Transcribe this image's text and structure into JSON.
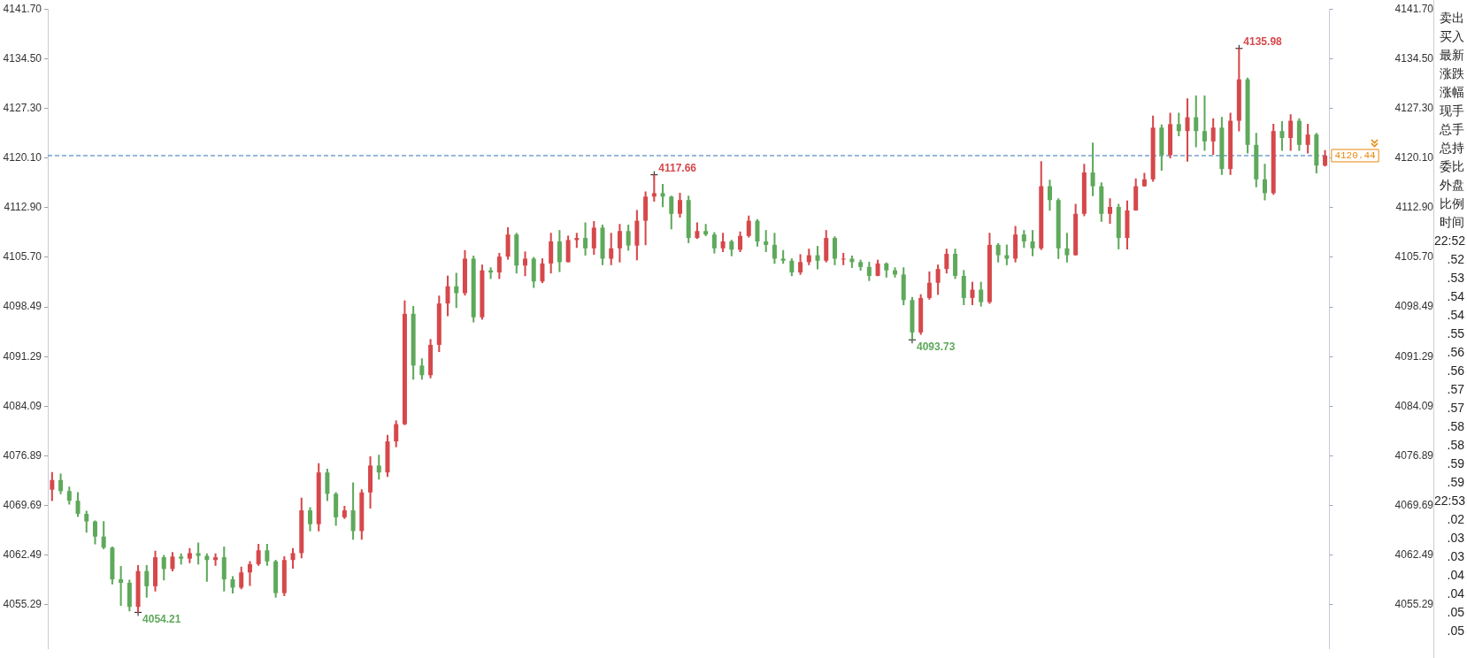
{
  "chart_data": {
    "type": "candlestick",
    "categories": [
      null,
      null,
      null,
      null,
      null,
      null,
      null,
      null,
      null,
      null,
      null,
      null,
      null,
      null,
      null,
      null,
      null,
      null,
      null,
      null,
      null,
      null,
      null,
      null,
      null,
      null,
      null,
      null,
      null,
      null,
      null,
      null,
      null,
      null,
      null,
      null,
      null,
      null,
      null,
      null,
      null,
      null,
      null,
      null,
      null,
      null,
      null,
      null,
      null,
      null,
      null,
      null,
      null,
      null,
      null,
      null,
      null,
      null,
      null,
      null,
      null,
      null,
      null,
      null,
      null,
      null,
      null,
      null,
      null,
      null,
      null,
      null,
      null,
      null,
      null,
      null,
      null,
      null,
      null,
      null,
      null,
      null,
      null,
      null,
      null,
      null,
      null,
      null,
      null,
      null,
      null,
      null,
      null,
      null,
      null,
      null,
      null,
      null,
      null,
      null,
      null,
      null,
      null,
      null,
      null,
      null,
      null,
      null,
      null,
      null,
      null,
      null,
      null,
      null,
      null,
      null,
      null,
      null,
      null,
      null,
      null,
      null,
      null,
      null,
      null,
      null,
      null,
      null,
      null,
      null,
      null,
      null,
      null,
      null,
      null,
      null,
      null,
      null,
      null,
      null,
      null,
      null,
      null,
      null,
      null,
      null,
      null,
      null,
      null
    ],
    "ohlc": [
      [
        4072.0,
        4074.5,
        4070.4,
        4073.4
      ],
      [
        4073.4,
        4074.3,
        4071.4,
        4071.8
      ],
      [
        4071.8,
        4072.4,
        4069.9,
        4070.4
      ],
      [
        4070.4,
        4071.6,
        4068.1,
        4068.5
      ],
      [
        4068.5,
        4068.9,
        4065.8,
        4067.4
      ],
      [
        4067.4,
        4067.5,
        4064.1,
        4065.2
      ],
      [
        4065.2,
        4067.4,
        4063.4,
        4063.6
      ],
      [
        4063.6,
        4063.7,
        4058.3,
        4059.0
      ],
      [
        4059.0,
        4060.9,
        4055.2,
        4058.5
      ],
      [
        4058.5,
        4058.9,
        4054.4,
        4055.0
      ],
      [
        4055.0,
        4061.0,
        4054.21,
        4060.2
      ],
      [
        4060.2,
        4061.0,
        4056.4,
        4058.0
      ],
      [
        4058.0,
        4063.1,
        4057.3,
        4062.2
      ],
      [
        4062.2,
        4062.5,
        4058.9,
        4060.5
      ],
      [
        4060.5,
        4062.9,
        4060.2,
        4062.3
      ],
      [
        4062.3,
        4062.7,
        4061.2,
        4062.0
      ],
      [
        4062.0,
        4063.5,
        4061.4,
        4062.8
      ],
      [
        4062.8,
        4064.3,
        4061.2,
        4062.4
      ],
      [
        4062.4,
        4062.7,
        4058.7,
        4061.8
      ],
      [
        4061.8,
        4062.7,
        4061.0,
        4062.2
      ],
      [
        4062.2,
        4063.7,
        4057.3,
        4059.0
      ],
      [
        4059.0,
        4059.4,
        4057.0,
        4057.8
      ],
      [
        4057.8,
        4060.8,
        4057.6,
        4060.0
      ],
      [
        4060.0,
        4061.6,
        4058.1,
        4061.2
      ],
      [
        4061.2,
        4064.1,
        4061.0,
        4063.2
      ],
      [
        4063.2,
        4064.1,
        4061.0,
        4061.6
      ],
      [
        4061.6,
        4061.8,
        4056.4,
        4057.0
      ],
      [
        4057.0,
        4062.3,
        4056.6,
        4061.8
      ],
      [
        4061.8,
        4063.5,
        4060.6,
        4062.8
      ],
      [
        4062.8,
        4070.8,
        4062.1,
        4069.0
      ],
      [
        4069.0,
        4069.4,
        4066.0,
        4067.0
      ],
      [
        4067.0,
        4075.8,
        4066.0,
        4074.5
      ],
      [
        4074.5,
        4075.0,
        4070.4,
        4071.4
      ],
      [
        4071.4,
        4071.6,
        4066.8,
        4068.0
      ],
      [
        4068.0,
        4069.6,
        4067.8,
        4069.0
      ],
      [
        4069.0,
        4073.0,
        4064.8,
        4066.0
      ],
      [
        4066.0,
        4072.0,
        4064.8,
        4071.6
      ],
      [
        4071.6,
        4076.8,
        4069.3,
        4075.5
      ],
      [
        4075.5,
        4077.0,
        4073.5,
        4074.5
      ],
      [
        4074.5,
        4079.9,
        4073.9,
        4079.0
      ],
      [
        4079.0,
        4082.0,
        4078.2,
        4081.5
      ],
      [
        4081.5,
        4099.4,
        4081.4,
        4097.5
      ],
      [
        4097.5,
        4098.6,
        4088.0,
        4090.0
      ],
      [
        4090.0,
        4091.0,
        4088.0,
        4088.6
      ],
      [
        4088.6,
        4093.8,
        4088.2,
        4093.0
      ],
      [
        4093.0,
        4100.1,
        4092.0,
        4099.0
      ],
      [
        4099.0,
        4103.0,
        4097.2,
        4101.5
      ],
      [
        4101.5,
        4103.4,
        4098.4,
        4100.5
      ],
      [
        4100.5,
        4106.7,
        4100.2,
        4105.5
      ],
      [
        4105.5,
        4105.9,
        4096.3,
        4097.0
      ],
      [
        4097.0,
        4104.6,
        4096.7,
        4103.8
      ],
      [
        4103.8,
        4104.2,
        4102.6,
        4103.5
      ],
      [
        4103.5,
        4106.3,
        4102.6,
        4105.8
      ],
      [
        4105.8,
        4110.0,
        4105.4,
        4109.0
      ],
      [
        4109.0,
        4109.2,
        4103.4,
        4104.5
      ],
      [
        4104.5,
        4106.5,
        4103.0,
        4105.5
      ],
      [
        4105.5,
        4105.7,
        4101.3,
        4102.2
      ],
      [
        4102.2,
        4105.5,
        4102.0,
        4104.8
      ],
      [
        4104.8,
        4109.2,
        4103.4,
        4108.0
      ],
      [
        4108.0,
        4109.6,
        4103.6,
        4105.0
      ],
      [
        4105.0,
        4108.8,
        4105.0,
        4108.2
      ],
      [
        4108.2,
        4109.2,
        4107.1,
        4108.5
      ],
      [
        4108.5,
        4110.7,
        4106.0,
        4107.0
      ],
      [
        4107.0,
        4110.9,
        4106.1,
        4110.0
      ],
      [
        4110.0,
        4110.4,
        4104.6,
        4105.5
      ],
      [
        4105.5,
        4109.2,
        4104.6,
        4107.0
      ],
      [
        4107.0,
        4110.5,
        4105.0,
        4109.5
      ],
      [
        4109.5,
        4110.4,
        4106.7,
        4107.4
      ],
      [
        4107.4,
        4112.5,
        4105.3,
        4111.0
      ],
      [
        4111.0,
        4115.2,
        4107.5,
        4114.5
      ],
      [
        4114.5,
        4117.66,
        4113.8,
        4115.0
      ],
      [
        4115.0,
        4116.3,
        4113.0,
        4114.5
      ],
      [
        4114.5,
        4114.6,
        4109.8,
        4112.0
      ],
      [
        4112.0,
        4115.0,
        4111.5,
        4114.0
      ],
      [
        4114.0,
        4114.6,
        4107.8,
        4108.5
      ],
      [
        4108.5,
        4110.7,
        4108.4,
        4109.5
      ],
      [
        4109.5,
        4110.5,
        4108.8,
        4109.0
      ],
      [
        4109.0,
        4109.3,
        4106.3,
        4107.0
      ],
      [
        4107.0,
        4109.2,
        4106.5,
        4108.0
      ],
      [
        4108.0,
        4108.2,
        4105.9,
        4106.8
      ],
      [
        4106.8,
        4109.4,
        4106.5,
        4108.8
      ],
      [
        4108.8,
        4111.7,
        4108.6,
        4111.0
      ],
      [
        4111.0,
        4111.2,
        4107.3,
        4108.0
      ],
      [
        4108.0,
        4109.6,
        4106.5,
        4107.5
      ],
      [
        4107.5,
        4109.2,
        4104.8,
        4105.5
      ],
      [
        4105.5,
        4106.7,
        4104.8,
        4105.2
      ],
      [
        4105.2,
        4105.5,
        4103.0,
        4103.5
      ],
      [
        4103.5,
        4106.1,
        4103.2,
        4105.0
      ],
      [
        4105.0,
        4106.9,
        4104.6,
        4106.0
      ],
      [
        4106.0,
        4107.3,
        4104.0,
        4105.2
      ],
      [
        4105.2,
        4109.6,
        4105.0,
        4108.5
      ],
      [
        4108.5,
        4108.7,
        4104.6,
        4105.5
      ],
      [
        4105.5,
        4106.3,
        4104.6,
        4105.5
      ],
      [
        4105.5,
        4105.9,
        4104.2,
        4105.0
      ],
      [
        4105.0,
        4105.3,
        4103.8,
        4104.3
      ],
      [
        4104.3,
        4105.0,
        4102.3,
        4103.0
      ],
      [
        4103.0,
        4105.3,
        4103.0,
        4104.8
      ],
      [
        4104.8,
        4104.9,
        4102.8,
        4103.8
      ],
      [
        4103.8,
        4104.2,
        4102.8,
        4103.2
      ],
      [
        4103.2,
        4104.2,
        4098.8,
        4099.5
      ],
      [
        4099.5,
        4099.9,
        4093.73,
        4094.8
      ],
      [
        4094.8,
        4100.3,
        4094.5,
        4099.8
      ],
      [
        4099.8,
        4103.6,
        4099.6,
        4102.0
      ],
      [
        4102.0,
        4104.6,
        4100.3,
        4104.0
      ],
      [
        4104.0,
        4106.9,
        4103.4,
        4106.2
      ],
      [
        4106.2,
        4106.9,
        4102.6,
        4103.0
      ],
      [
        4103.0,
        4103.8,
        4098.8,
        4099.8
      ],
      [
        4099.8,
        4102.1,
        4098.8,
        4101.0
      ],
      [
        4101.0,
        4102.1,
        4098.6,
        4099.2
      ],
      [
        4099.2,
        4109.2,
        4099.0,
        4107.5
      ],
      [
        4107.5,
        4107.7,
        4105.0,
        4106.0
      ],
      [
        4106.0,
        4107.5,
        4104.6,
        4105.5
      ],
      [
        4105.5,
        4110.2,
        4105.0,
        4109.0
      ],
      [
        4109.0,
        4109.6,
        4107.1,
        4108.0
      ],
      [
        4108.0,
        4109.6,
        4105.9,
        4107.0
      ],
      [
        4107.0,
        4119.6,
        4106.8,
        4116.0
      ],
      [
        4116.0,
        4116.9,
        4112.5,
        4114.0
      ],
      [
        4114.0,
        4114.2,
        4105.5,
        4107.0
      ],
      [
        4107.0,
        4109.2,
        4105.0,
        4106.0
      ],
      [
        4106.0,
        4113.4,
        4106.0,
        4112.0
      ],
      [
        4112.0,
        4119.2,
        4111.7,
        4118.0
      ],
      [
        4118.0,
        4122.3,
        4114.6,
        4116.0
      ],
      [
        4116.0,
        4116.5,
        4110.9,
        4112.0
      ],
      [
        4112.0,
        4114.2,
        4110.6,
        4113.0
      ],
      [
        4113.0,
        4113.4,
        4106.9,
        4108.5
      ],
      [
        4108.5,
        4113.9,
        4106.9,
        4112.5
      ],
      [
        4112.5,
        4117.1,
        4112.5,
        4116.0
      ],
      [
        4116.0,
        4117.9,
        4116.0,
        4117.0
      ],
      [
        4117.0,
        4126.2,
        4116.7,
        4124.5
      ],
      [
        4124.5,
        4124.9,
        4118.3,
        4120.5
      ],
      [
        4120.5,
        4126.6,
        4120.1,
        4125.0
      ],
      [
        4125.0,
        4126.6,
        4123.3,
        4124.0
      ],
      [
        4124.0,
        4128.7,
        4119.6,
        4126.0
      ],
      [
        4126.0,
        4129.1,
        4121.7,
        4124.0
      ],
      [
        4124.0,
        4129.1,
        4121.2,
        4122.5
      ],
      [
        4122.5,
        4125.8,
        4120.6,
        4124.5
      ],
      [
        4124.5,
        4126.0,
        4117.7,
        4118.5
      ],
      [
        4118.5,
        4126.6,
        4117.7,
        4125.5
      ],
      [
        4125.5,
        4135.98,
        4124.0,
        4131.5
      ],
      [
        4131.5,
        4131.7,
        4120.8,
        4122.0
      ],
      [
        4122.0,
        4123.7,
        4115.9,
        4117.0
      ],
      [
        4117.0,
        4119.2,
        4114.0,
        4115.0
      ],
      [
        4115.0,
        4125.0,
        4114.8,
        4124.0
      ],
      [
        4124.0,
        4125.4,
        4121.2,
        4123.0
      ],
      [
        4123.0,
        4126.4,
        4121.2,
        4125.5
      ],
      [
        4125.5,
        4125.8,
        4121.2,
        4122.0
      ],
      [
        4122.0,
        4125.0,
        4120.8,
        4123.5
      ],
      [
        4123.5,
        4123.7,
        4117.9,
        4119.0
      ],
      [
        4119.0,
        4121.2,
        4118.9,
        4120.44
      ]
    ],
    "value_labels": [
      null,
      null,
      null,
      null,
      null,
      null,
      null,
      null,
      null,
      null,
      "4054.21",
      null,
      null,
      null,
      null,
      null,
      null,
      null,
      null,
      null,
      null,
      null,
      null,
      null,
      null,
      null,
      null,
      null,
      null,
      null,
      null,
      null,
      null,
      null,
      null,
      null,
      null,
      null,
      null,
      null,
      null,
      null,
      null,
      null,
      null,
      null,
      null,
      null,
      null,
      null,
      null,
      null,
      null,
      null,
      null,
      null,
      null,
      null,
      null,
      null,
      null,
      null,
      null,
      null,
      null,
      null,
      null,
      null,
      null,
      null,
      "4117.66",
      null,
      null,
      null,
      null,
      null,
      null,
      null,
      null,
      null,
      null,
      null,
      null,
      null,
      null,
      null,
      null,
      null,
      null,
      null,
      null,
      null,
      null,
      null,
      null,
      null,
      null,
      null,
      null,
      null,
      "4093.73",
      null,
      null,
      null,
      null,
      null,
      null,
      null,
      null,
      null,
      null,
      null,
      null,
      null,
      null,
      null,
      null,
      null,
      null,
      null,
      null,
      null,
      null,
      null,
      null,
      null,
      null,
      null,
      null,
      null,
      null,
      null,
      null,
      null,
      null,
      null,
      null,
      null,
      "4135.98",
      null,
      null,
      null,
      null,
      null,
      null,
      null,
      null,
      null,
      null
    ],
    "colors": [
      "#d6484b",
      "#5ea95b",
      "#5ea95b",
      "#5ea95b",
      "#5ea95b",
      "#5ea95b",
      "#5ea95b",
      "#5ea95b",
      "#5ea95b",
      "#5ea95b",
      "#d6484b",
      "#5ea95b",
      "#d6484b",
      "#5ea95b",
      "#d6484b",
      "#5ea95b",
      "#d6484b",
      "#5ea95b",
      "#5ea95b",
      "#d6484b",
      "#5ea95b",
      "#5ea95b",
      "#d6484b",
      "#d6484b",
      "#d6484b",
      "#5ea95b",
      "#5ea95b",
      "#d6484b",
      "#d6484b",
      "#d6484b",
      "#5ea95b",
      "#d6484b",
      "#5ea95b",
      "#5ea95b",
      "#d6484b",
      "#5ea95b",
      "#d6484b",
      "#d6484b",
      "#5ea95b",
      "#d6484b",
      "#d6484b",
      "#d6484b",
      "#5ea95b",
      "#5ea95b",
      "#d6484b",
      "#d6484b",
      "#d6484b",
      "#5ea95b",
      "#d6484b",
      "#5ea95b",
      "#d6484b",
      "#5ea95b",
      "#d6484b",
      "#d6484b",
      "#5ea95b",
      "#d6484b",
      "#5ea95b",
      "#d6484b",
      "#d6484b",
      "#5ea95b",
      "#d6484b",
      "#d6484b",
      "#5ea95b",
      "#d6484b",
      "#5ea95b",
      "#d6484b",
      "#d6484b",
      "#5ea95b",
      "#d6484b",
      "#d6484b",
      "#d6484b",
      "#5ea95b",
      "#5ea95b",
      "#d6484b",
      "#5ea95b",
      "#d6484b",
      "#5ea95b",
      "#5ea95b",
      "#d6484b",
      "#5ea95b",
      "#d6484b",
      "#d6484b",
      "#5ea95b",
      "#5ea95b",
      "#5ea95b",
      "#5ea95b",
      "#5ea95b",
      "#d6484b",
      "#d6484b",
      "#5ea95b",
      "#d6484b",
      "#5ea95b",
      "#d6484b",
      "#5ea95b",
      "#5ea95b",
      "#5ea95b",
      "#d6484b",
      "#5ea95b",
      "#5ea95b",
      "#5ea95b",
      "#5ea95b",
      "#d6484b",
      "#d6484b",
      "#d6484b",
      "#d6484b",
      "#5ea95b",
      "#5ea95b",
      "#d6484b",
      "#5ea95b",
      "#d6484b",
      "#5ea95b",
      "#5ea95b",
      "#d6484b",
      "#5ea95b",
      "#5ea95b",
      "#d6484b",
      "#5ea95b",
      "#5ea95b",
      "#5ea95b",
      "#d6484b",
      "#d6484b",
      "#5ea95b",
      "#5ea95b",
      "#d6484b",
      "#5ea95b",
      "#d6484b",
      "#d6484b",
      "#d6484b",
      "#d6484b",
      "#5ea95b",
      "#d6484b",
      "#5ea95b",
      "#d6484b",
      "#5ea95b",
      "#5ea95b",
      "#d6484b",
      "#5ea95b",
      "#d6484b",
      "#d6484b",
      "#5ea95b",
      "#5ea95b",
      "#5ea95b",
      "#d6484b",
      "#5ea95b",
      "#d6484b",
      "#5ea95b",
      "#d6484b",
      "#5ea95b",
      "#d6484b"
    ],
    "ylim": [
      4048.9,
      4141.7
    ],
    "yticks": [
      {
        "value": 4141.7,
        "label": "4141.70"
      },
      {
        "value": 4134.5,
        "label": "4134.50"
      },
      {
        "value": 4127.3,
        "label": "4127.30"
      },
      {
        "value": 4120.1,
        "label": "4120.10"
      },
      {
        "value": 4112.9,
        "label": "4112.90"
      },
      {
        "value": 4105.7,
        "label": "4105.70"
      },
      4098.49,
      4091.29,
      4084.09,
      4076.89,
      4069.69,
      4062.49,
      4055.29
    ],
    "y2lim": [
      4048.9,
      4141.7
    ],
    "y2ticks": [
      {
        "value": 4141.7,
        "label": "4141.70"
      },
      {
        "value": 4134.5,
        "label": "4134.50"
      },
      {
        "value": 4127.3,
        "label": "4127.30"
      },
      {
        "value": 4120.1,
        "label": "4120.10"
      },
      {
        "value": 4112.9,
        "label": "4112.90"
      },
      {
        "value": 4105.7,
        "label": "4105.70"
      },
      4098.49,
      4091.29,
      4084.09,
      4076.89,
      4069.69,
      4062.49,
      4055.29
    ],
    "tick_labels": "y",
    "ref_lines": [
      {
        "axis": "y",
        "value": 4120.44,
        "label": "4120.44",
        "color": "#2f72b8",
        "line_style": "dashed"
      }
    ],
    "annotations": [
      "卖出",
      "买入",
      "最新",
      "涨跌",
      "涨幅",
      "现手",
      "总手",
      "总持",
      "委比",
      "外盘",
      "比例",
      "时间",
      "22:52",
      ".52",
      ".53",
      ".54",
      ".54",
      ".55",
      ".56",
      ".56",
      ".57",
      ".57",
      ".58",
      ".58",
      ".59",
      ".59",
      "22:53",
      ".02",
      ".03",
      ".03",
      ".04",
      ".04",
      ".05",
      ".05"
    ]
  }
}
